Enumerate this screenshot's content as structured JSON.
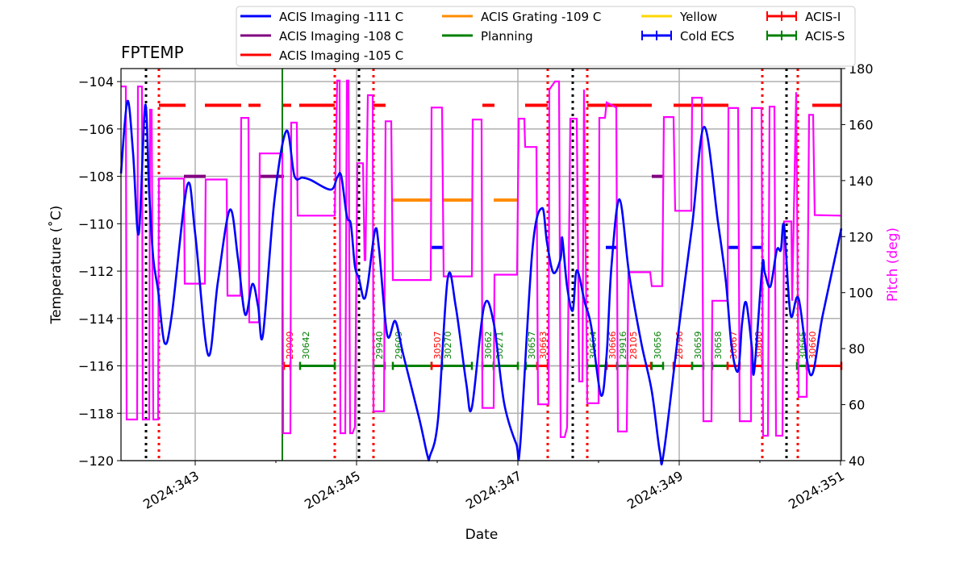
{
  "chart_data": {
    "type": "line",
    "title": "FPTEMP",
    "xlabel": "Date",
    "ylabel": "Temperature ($^\\circ$C)",
    "ylabel_display": "Temperature (˚C)",
    "y2label": "Pitch (deg)",
    "xlim": [
      342.08,
      351.01
    ],
    "ylim": [
      -120,
      -103.45
    ],
    "y2lim": [
      40,
      180
    ],
    "grid": true,
    "legend_position": "top, above plot",
    "x_ticks": [
      {
        "v": 343,
        "label": "2024:343"
      },
      {
        "v": 345,
        "label": "2024:345"
      },
      {
        "v": 347,
        "label": "2024:347"
      },
      {
        "v": 349,
        "label": "2024:349"
      },
      {
        "v": 351,
        "label": "2024:351"
      }
    ],
    "x_minor_ticks": [
      344,
      346,
      348,
      350
    ],
    "y_ticks": [
      -104,
      -106,
      -108,
      -110,
      -112,
      -114,
      -116,
      -118,
      -120
    ],
    "y2_ticks": [
      40,
      60,
      80,
      100,
      120,
      140,
      160,
      180
    ],
    "colors": {
      "temp": "#0000ff",
      "pitch": "#ff00ff",
      "imaging111": "#0000ff",
      "imaging108": "#800080",
      "imaging105": "#ff0000",
      "grating109": "#ff8c00",
      "planning": "#008000",
      "yellow": "#ffd700",
      "acis_i": "#ff0000",
      "acis_s": "#008000"
    },
    "legend": [
      {
        "label": "ACIS Imaging -111 C",
        "color": "#0000ff",
        "style": "line"
      },
      {
        "label": "ACIS Imaging -108 C",
        "color": "#800080",
        "style": "line"
      },
      {
        "label": "ACIS Imaging -105 C",
        "color": "#ff0000",
        "style": "line"
      },
      {
        "label": "ACIS Grating -109 C",
        "color": "#ff8c00",
        "style": "line"
      },
      {
        "label": "Planning",
        "color": "#008000",
        "style": "line"
      },
      {
        "label": "Yellow",
        "color": "#ffd700",
        "style": "line"
      },
      {
        "label": "Cold ECS",
        "color": "#0000ff",
        "style": "errorbar"
      },
      {
        "label": "ACIS-I",
        "color": "#ff0000",
        "style": "errorbar"
      },
      {
        "label": "ACIS-S",
        "color": "#008000",
        "style": "errorbar"
      }
    ],
    "temperature": [
      [
        342.08,
        -107.88
      ],
      [
        342.16,
        -104.82
      ],
      [
        342.23,
        -107.03
      ],
      [
        342.3,
        -110.43
      ],
      [
        342.38,
        -104.99
      ],
      [
        342.43,
        -108.73
      ],
      [
        342.48,
        -111.46
      ],
      [
        342.54,
        -112.82
      ],
      [
        342.62,
        -115.03
      ],
      [
        342.71,
        -113.84
      ],
      [
        342.9,
        -108.39
      ],
      [
        343.0,
        -110.43
      ],
      [
        343.16,
        -115.54
      ],
      [
        343.28,
        -112.48
      ],
      [
        343.43,
        -109.41
      ],
      [
        343.53,
        -111.46
      ],
      [
        343.62,
        -113.84
      ],
      [
        343.71,
        -112.54
      ],
      [
        343.78,
        -113.5
      ],
      [
        343.84,
        -114.69
      ],
      [
        343.98,
        -109.07
      ],
      [
        344.13,
        -106.08
      ],
      [
        344.23,
        -107.98
      ],
      [
        344.33,
        -108.05
      ],
      [
        344.43,
        -108.15
      ],
      [
        344.68,
        -108.56
      ],
      [
        344.76,
        -108.05
      ],
      [
        344.81,
        -107.98
      ],
      [
        344.88,
        -109.69
      ],
      [
        344.93,
        -110.03
      ],
      [
        344.98,
        -111.8
      ],
      [
        345.03,
        -112.31
      ],
      [
        345.09,
        -113.16
      ],
      [
        345.14,
        -112.54
      ],
      [
        345.23,
        -110.26
      ],
      [
        345.28,
        -111.11
      ],
      [
        345.38,
        -114.69
      ],
      [
        345.48,
        -114.11
      ],
      [
        345.58,
        -115.54
      ],
      [
        345.78,
        -118.26
      ],
      [
        345.88,
        -119.8
      ],
      [
        345.91,
        -119.8
      ],
      [
        346.01,
        -118.26
      ],
      [
        346.13,
        -112.31
      ],
      [
        346.23,
        -113.5
      ],
      [
        346.36,
        -116.73
      ],
      [
        346.43,
        -117.75
      ],
      [
        346.58,
        -113.5
      ],
      [
        346.7,
        -114.18
      ],
      [
        346.83,
        -117.58
      ],
      [
        346.98,
        -119.29
      ],
      [
        347.03,
        -119.29
      ],
      [
        347.18,
        -111.11
      ],
      [
        347.3,
        -109.34
      ],
      [
        347.36,
        -110.77
      ],
      [
        347.44,
        -112.07
      ],
      [
        347.53,
        -111.46
      ],
      [
        347.55,
        -110.6
      ],
      [
        347.61,
        -112.65
      ],
      [
        347.68,
        -113.67
      ],
      [
        347.73,
        -111.97
      ],
      [
        347.83,
        -113.33
      ],
      [
        347.91,
        -114.35
      ],
      [
        348.03,
        -117.24
      ],
      [
        348.1,
        -115.54
      ],
      [
        348.16,
        -111.8
      ],
      [
        348.26,
        -108.97
      ],
      [
        348.38,
        -112.14
      ],
      [
        348.53,
        -115.03
      ],
      [
        348.66,
        -117.07
      ],
      [
        348.76,
        -119.63
      ],
      [
        348.81,
        -119.63
      ],
      [
        349.01,
        -114.01
      ],
      [
        349.16,
        -110.09
      ],
      [
        349.31,
        -105.91
      ],
      [
        349.48,
        -109.92
      ],
      [
        349.58,
        -112.48
      ],
      [
        349.65,
        -115.2
      ],
      [
        349.73,
        -116.22
      ],
      [
        349.78,
        -114.18
      ],
      [
        349.83,
        -113.33
      ],
      [
        349.9,
        -115.2
      ],
      [
        349.93,
        -116.22
      ],
      [
        350.03,
        -111.8
      ],
      [
        350.06,
        -112.07
      ],
      [
        350.13,
        -112.65
      ],
      [
        350.21,
        -111.11
      ],
      [
        350.26,
        -111.11
      ],
      [
        350.3,
        -110.09
      ],
      [
        350.38,
        -113.84
      ],
      [
        350.48,
        -113.16
      ],
      [
        350.63,
        -116.39
      ],
      [
        350.78,
        -113.84
      ],
      [
        351.01,
        -110.2
      ]
    ],
    "pitch": [
      [
        342.08,
        173.6
      ],
      [
        342.14,
        173.6
      ],
      [
        342.15,
        54.7
      ],
      [
        342.28,
        54.7
      ],
      [
        342.29,
        173.6
      ],
      [
        342.34,
        173.6
      ],
      [
        342.35,
        54.7
      ],
      [
        342.43,
        54.7
      ],
      [
        342.44,
        165.3
      ],
      [
        342.46,
        165.3
      ],
      [
        342.48,
        54.7
      ],
      [
        342.54,
        54.7
      ],
      [
        342.55,
        140.7
      ],
      [
        342.86,
        140.7
      ],
      [
        342.87,
        103.2
      ],
      [
        343.12,
        103.2
      ],
      [
        343.13,
        140.4
      ],
      [
        343.39,
        140.4
      ],
      [
        343.4,
        98.9
      ],
      [
        343.56,
        98.9
      ],
      [
        343.57,
        162.4
      ],
      [
        343.66,
        162.4
      ],
      [
        343.67,
        89.4
      ],
      [
        343.79,
        89.4
      ],
      [
        343.8,
        149.7
      ],
      [
        344.08,
        149.7
      ],
      [
        344.09,
        49.8
      ],
      [
        344.18,
        49.8
      ],
      [
        344.19,
        160.7
      ],
      [
        344.26,
        160.7
      ],
      [
        344.27,
        127.5
      ],
      [
        344.73,
        127.5
      ],
      [
        344.76,
        175.7
      ],
      [
        344.79,
        175.7
      ],
      [
        344.8,
        49.8
      ],
      [
        344.86,
        49.8
      ],
      [
        344.88,
        175.7
      ],
      [
        344.9,
        175.7
      ],
      [
        344.92,
        49.8
      ],
      [
        344.95,
        49.8
      ],
      [
        344.98,
        52
      ],
      [
        345.01,
        146.2
      ],
      [
        345.08,
        146.2
      ],
      [
        345.1,
        111.6
      ],
      [
        345.11,
        111.6
      ],
      [
        345.14,
        170.5
      ],
      [
        345.2,
        170.5
      ],
      [
        345.21,
        57.6
      ],
      [
        345.34,
        57.6
      ],
      [
        345.36,
        161.2
      ],
      [
        345.43,
        161.2
      ],
      [
        345.45,
        104.5
      ],
      [
        345.92,
        104.5
      ],
      [
        345.93,
        166.1
      ],
      [
        346.06,
        166.1
      ],
      [
        346.08,
        105.8
      ],
      [
        346.43,
        105.8
      ],
      [
        346.44,
        161.8
      ],
      [
        346.55,
        161.8
      ],
      [
        346.56,
        58.8
      ],
      [
        346.7,
        58.8
      ],
      [
        346.71,
        106.4
      ],
      [
        346.99,
        106.4
      ],
      [
        347.01,
        162.1
      ],
      [
        347.08,
        162.1
      ],
      [
        347.09,
        152.0
      ],
      [
        347.23,
        152.0
      ],
      [
        347.25,
        60.1
      ],
      [
        347.38,
        60.1
      ],
      [
        347.39,
        172.5
      ],
      [
        347.46,
        175.4
      ],
      [
        347.51,
        175.4
      ],
      [
        347.53,
        48.4
      ],
      [
        347.58,
        48.4
      ],
      [
        347.61,
        51.8
      ],
      [
        347.65,
        162.1
      ],
      [
        347.73,
        162.1
      ],
      [
        347.76,
        68.3
      ],
      [
        347.8,
        68.3
      ],
      [
        347.82,
        172.5
      ],
      [
        347.86,
        60.5
      ],
      [
        348.0,
        60.5
      ],
      [
        348.01,
        162.4
      ],
      [
        348.08,
        162.4
      ],
      [
        348.1,
        167.9
      ],
      [
        348.22,
        166.1
      ],
      [
        348.24,
        50.4
      ],
      [
        348.35,
        50.4
      ],
      [
        348.37,
        107.3
      ],
      [
        348.64,
        107.3
      ],
      [
        348.66,
        102.3
      ],
      [
        348.79,
        102.3
      ],
      [
        348.81,
        162.7
      ],
      [
        348.93,
        162.7
      ],
      [
        348.95,
        129.2
      ],
      [
        349.15,
        129.2
      ],
      [
        349.16,
        169.6
      ],
      [
        349.28,
        169.6
      ],
      [
        349.3,
        54.1
      ],
      [
        349.4,
        54.1
      ],
      [
        349.41,
        97.1
      ],
      [
        349.6,
        97.1
      ],
      [
        349.61,
        165.9
      ],
      [
        349.73,
        165.9
      ],
      [
        349.75,
        54.1
      ],
      [
        349.89,
        54.1
      ],
      [
        349.9,
        165.9
      ],
      [
        350.02,
        165.9
      ],
      [
        350.04,
        48.9
      ],
      [
        350.1,
        48.9
      ],
      [
        350.12,
        166.4
      ],
      [
        350.18,
        166.4
      ],
      [
        350.2,
        48.9
      ],
      [
        350.28,
        48.9
      ],
      [
        350.3,
        125.4
      ],
      [
        350.39,
        125.4
      ],
      [
        350.4,
        97.1
      ],
      [
        350.45,
        171.6
      ],
      [
        350.48,
        62.8
      ],
      [
        350.58,
        62.8
      ],
      [
        350.61,
        163.5
      ],
      [
        350.66,
        163.5
      ],
      [
        350.68,
        127.7
      ],
      [
        351.01,
        127.5
      ]
    ],
    "limit_segments": [
      {
        "level": -105,
        "color": "#ff0000",
        "spans": [
          [
            342.55,
            342.88
          ],
          [
            343.12,
            343.57
          ],
          [
            343.66,
            343.81
          ],
          [
            344.09,
            344.19
          ],
          [
            344.29,
            344.73
          ],
          [
            345.21,
            345.36
          ],
          [
            346.56,
            346.71
          ],
          [
            347.09,
            347.37
          ],
          [
            347.86,
            348.66
          ],
          [
            348.93,
            349.61
          ],
          [
            350.65,
            351.01
          ]
        ]
      },
      {
        "level": -108,
        "color": "#800080",
        "spans": [
          [
            342.86,
            343.13
          ],
          [
            343.8,
            344.1
          ],
          [
            348.66,
            348.81
          ]
        ]
      },
      {
        "level": -109,
        "color": "#ff8c00",
        "spans": [
          [
            345.44,
            345.93
          ],
          [
            346.06,
            346.43
          ],
          [
            346.7,
            347.0
          ]
        ]
      },
      {
        "level": -111,
        "color": "#0000ff",
        "spans": [
          [
            345.92,
            346.07
          ],
          [
            348.09,
            348.23
          ],
          [
            349.6,
            349.75
          ],
          [
            349.9,
            350.03
          ]
        ]
      }
    ],
    "planning_lines": [
      344.08
    ],
    "black_dotted_lines": [
      342.39,
      345.03,
      347.68,
      350.33
    ],
    "red_dotted_lines": [
      342.55,
      344.73,
      345.21,
      347.37,
      347.86,
      350.03,
      350.47
    ],
    "observations": [
      {
        "obsid": "29909",
        "inst": "ACIS-I",
        "start": 344.1,
        "stop": 344.18
      },
      {
        "obsid": "30642",
        "inst": "ACIS-S",
        "start": 344.3,
        "stop": 344.73
      },
      {
        "obsid": "29940",
        "inst": "ACIS-S",
        "start": 345.21,
        "stop": 345.35
      },
      {
        "obsid": "29609",
        "inst": "ACIS-S",
        "start": 345.45,
        "stop": 345.93
      },
      {
        "obsid": "30507",
        "inst": "ACIS-I",
        "start": 345.93,
        "stop": 346.06
      },
      {
        "obsid": "30270",
        "inst": "ACIS-S",
        "start": 346.06,
        "stop": 346.43
      },
      {
        "obsid": "30662",
        "inst": "ACIS-S",
        "start": 346.56,
        "stop": 346.7
      },
      {
        "obsid": "30271",
        "inst": "ACIS-S",
        "start": 346.7,
        "stop": 347.0
      },
      {
        "obsid": "30657",
        "inst": "ACIS-S",
        "start": 347.1,
        "stop": 347.24
      },
      {
        "obsid": "30663",
        "inst": "ACIS-I",
        "start": 347.24,
        "stop": 347.37
      },
      {
        "obsid": "30664",
        "inst": "ACIS-S",
        "start": 347.86,
        "stop": 348.1
      },
      {
        "obsid": "30666",
        "inst": "ACIS-I",
        "start": 348.1,
        "stop": 348.23
      },
      {
        "obsid": "29916",
        "inst": "ACIS-S",
        "start": 348.23,
        "stop": 348.36
      },
      {
        "obsid": "28105",
        "inst": "ACIS-I",
        "start": 348.36,
        "stop": 348.65
      },
      {
        "obsid": "30656",
        "inst": "ACIS-S",
        "start": 348.66,
        "stop": 348.8
      },
      {
        "obsid": "28796",
        "inst": "ACIS-I",
        "start": 348.93,
        "stop": 349.16
      },
      {
        "obsid": "30659",
        "inst": "ACIS-S",
        "start": 349.16,
        "stop": 349.3
      },
      {
        "obsid": "30658",
        "inst": "ACIS-S",
        "start": 349.41,
        "stop": 349.6
      },
      {
        "obsid": "30667",
        "inst": "ACIS-I",
        "start": 349.6,
        "stop": 349.75
      },
      {
        "obsid": "30668",
        "inst": "ACIS-I",
        "start": 349.91,
        "stop": 350.03
      },
      {
        "obsid": "30665",
        "inst": "ACIS-S",
        "start": 350.46,
        "stop": 350.58
      },
      {
        "obsid": "30660",
        "inst": "ACIS-I",
        "start": 350.58,
        "stop": 351.01
      }
    ],
    "observation_level": -116
  }
}
